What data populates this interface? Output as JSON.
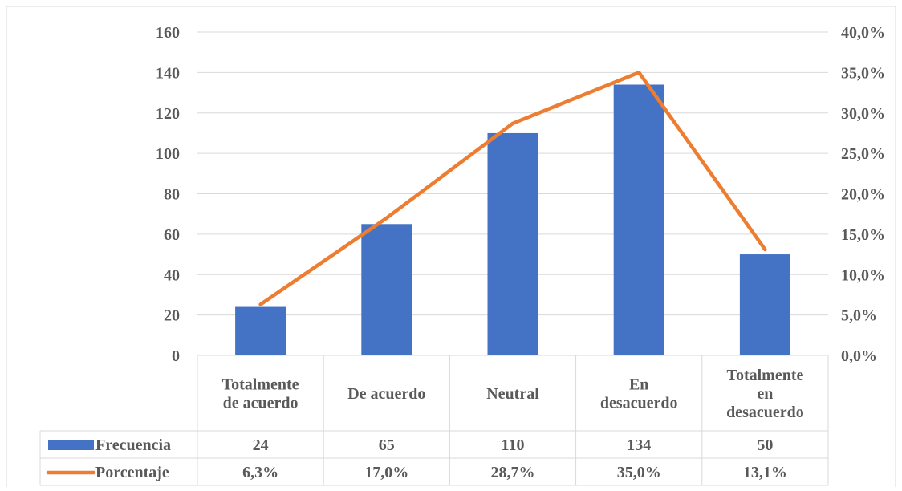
{
  "chart_data": {
    "type": "bar",
    "categories": [
      [
        "Totalmente",
        "de acuerdo"
      ],
      [
        "De acuerdo"
      ],
      [
        "Neutral"
      ],
      [
        "En",
        "desacuerdo"
      ],
      [
        "Totalmente",
        "en",
        "desacuerdo"
      ]
    ],
    "series": [
      {
        "name": "Frecuencia",
        "type": "bar",
        "axis": "left",
        "values": [
          24,
          65,
          110,
          134,
          50
        ],
        "labels": [
          "24",
          "65",
          "110",
          "134",
          "50"
        ]
      },
      {
        "name": "Porcentaje",
        "type": "line",
        "axis": "right",
        "values": [
          6.3,
          17.0,
          28.7,
          35.0,
          13.1
        ],
        "labels": [
          "6,3%",
          "17,0%",
          "28,7%",
          "35,0%",
          "13,1%"
        ]
      }
    ],
    "y_left": {
      "min": 0,
      "max": 160,
      "ticks": [
        "0",
        "20",
        "40",
        "60",
        "80",
        "100",
        "120",
        "140",
        "160"
      ]
    },
    "y_right": {
      "min": 0,
      "max": 40,
      "ticks": [
        "0,0%",
        "5,0%",
        "10,0%",
        "15,0%",
        "20,0%",
        "25,0%",
        "30,0%",
        "35,0%",
        "40,0%"
      ]
    },
    "grid": true,
    "legend": "data-table",
    "colors": {
      "bar": "#4472C4",
      "line": "#ED7D31",
      "grid": "#D9D9D9",
      "text": "#595959"
    }
  }
}
